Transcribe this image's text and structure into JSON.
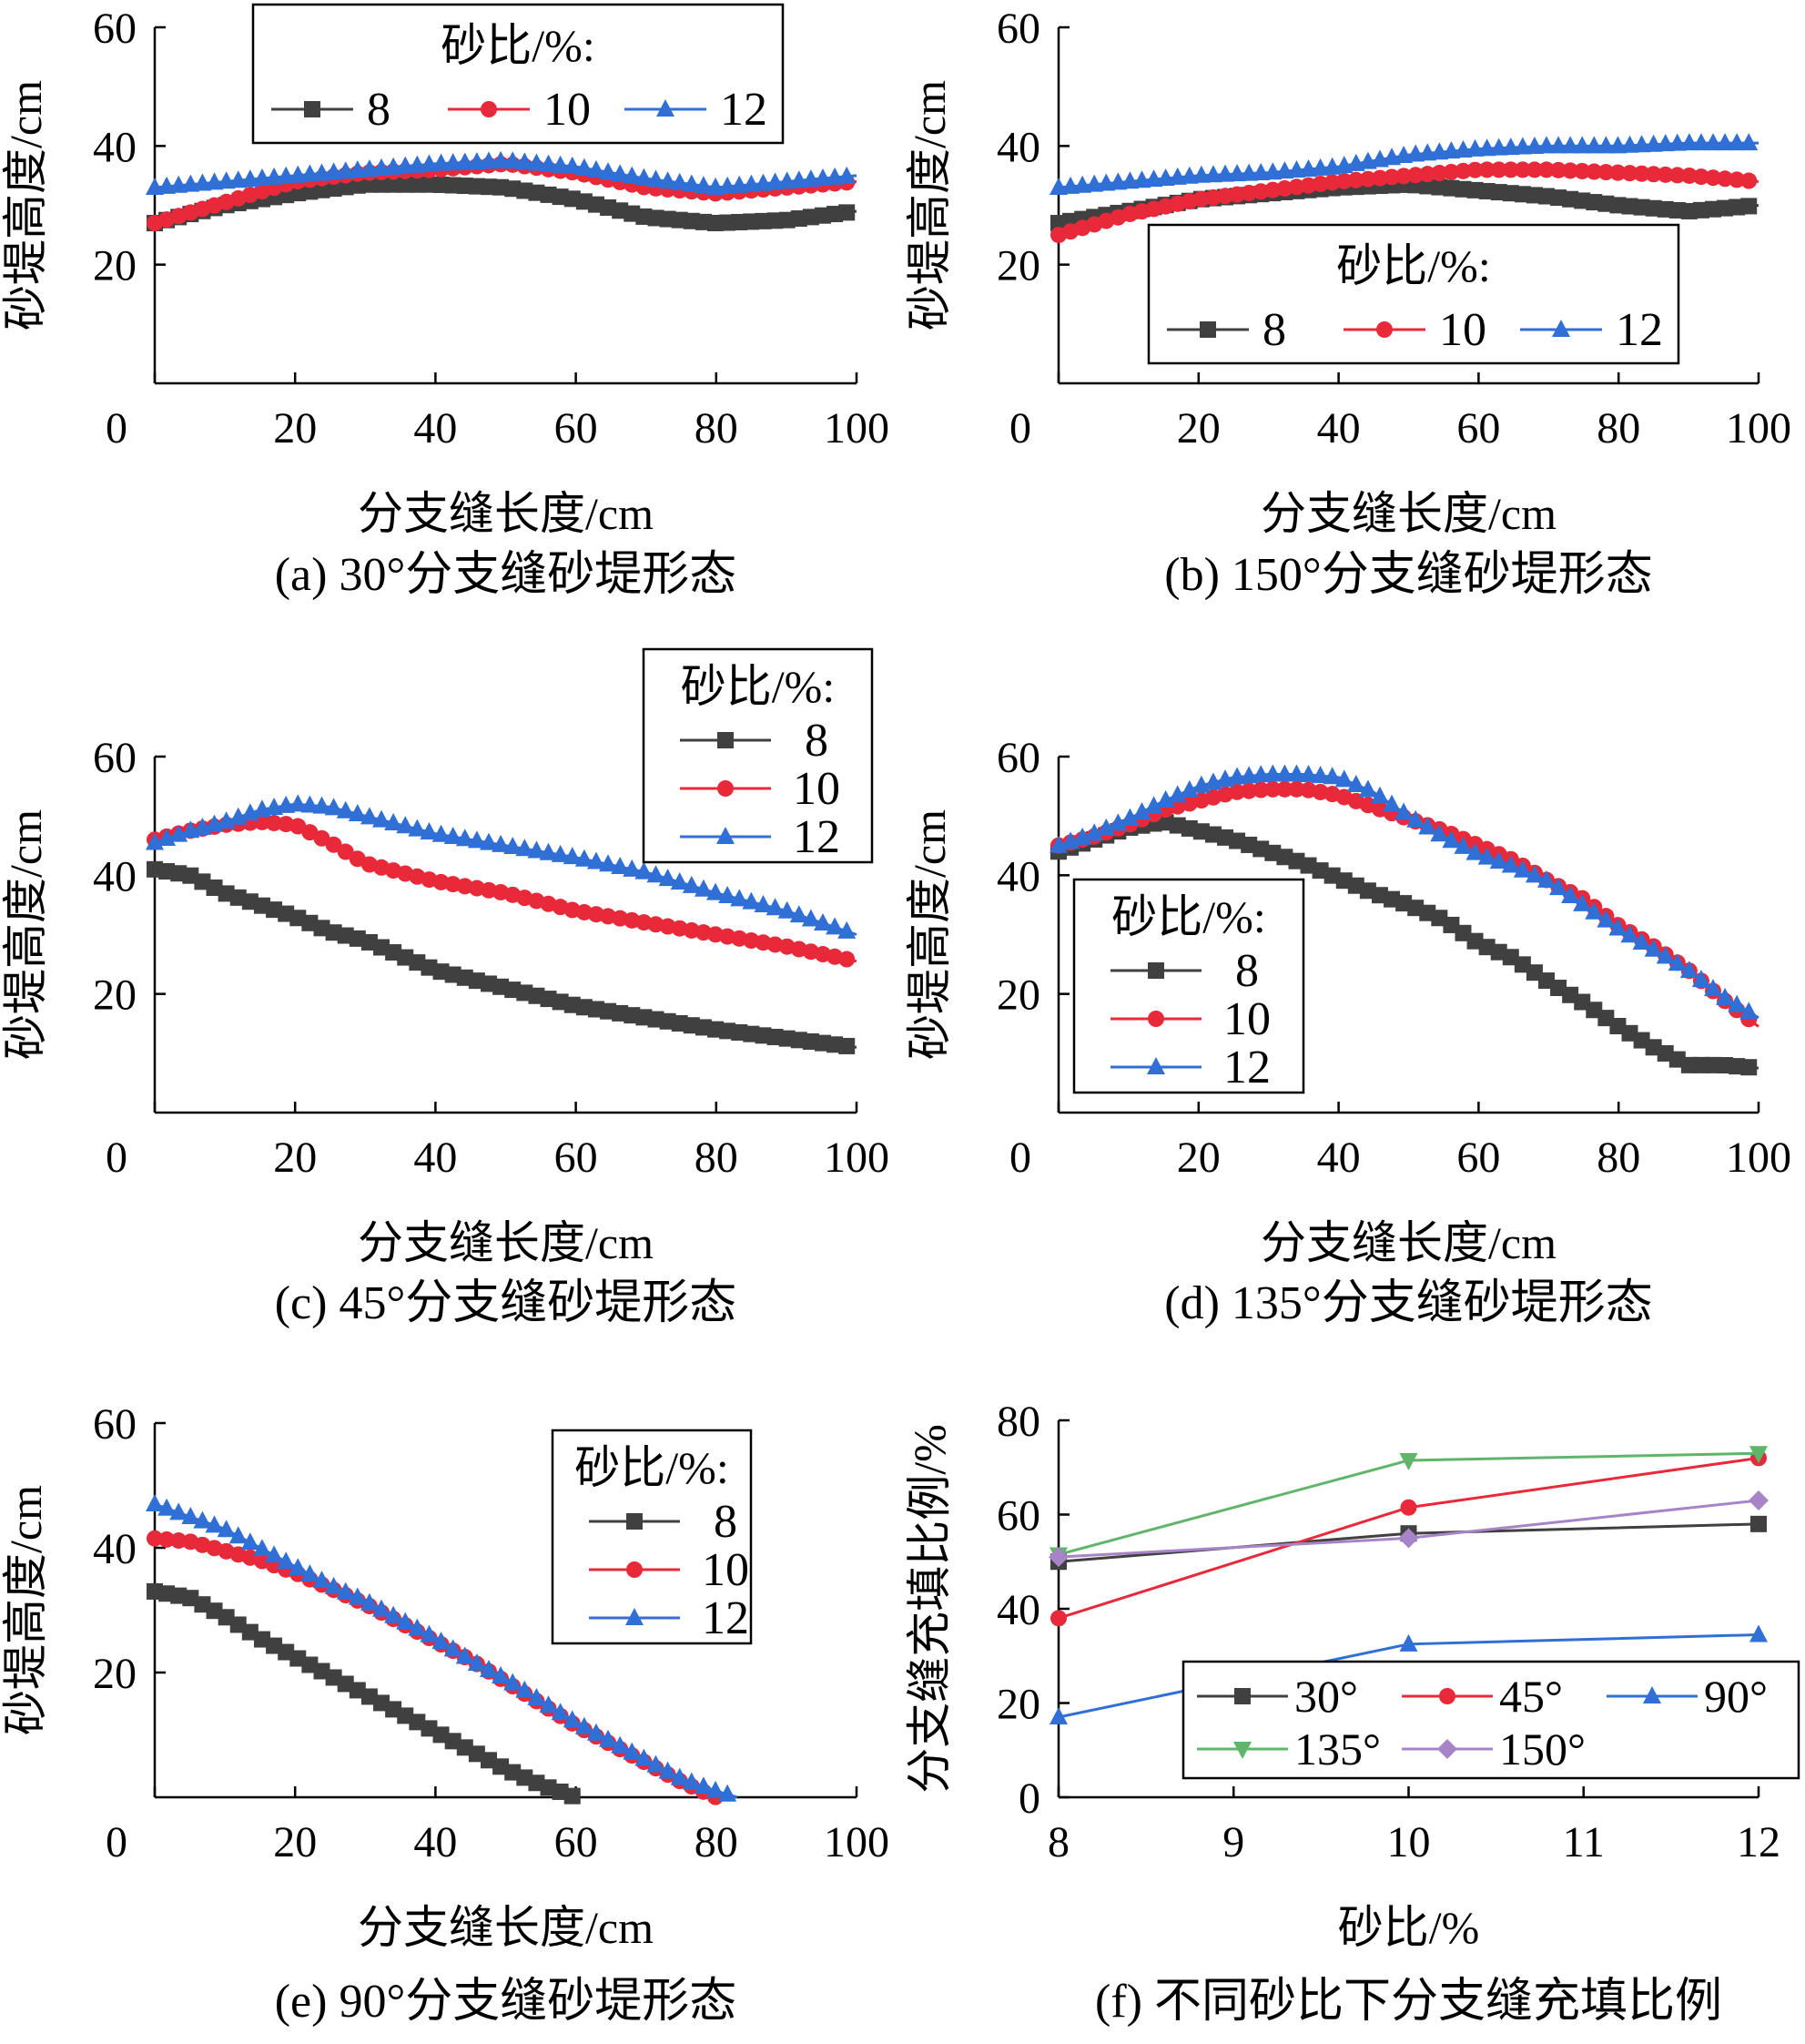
{
  "colors": {
    "s8": "#404040",
    "s10": "#e8293a",
    "s12": "#2f6fd6",
    "a30": "#404040",
    "a45": "#e8293a",
    "a90": "#2f6fd6",
    "a135": "#5fb56a",
    "a150": "#a784c8"
  },
  "chart_data": [
    {
      "id": "a",
      "type": "line",
      "caption": "(a) 30°分支缝砂堤形态",
      "xlabel": "分支缝长度/cm",
      "ylabel": "砂堤高度/cm",
      "xlim": [
        0,
        100
      ],
      "ylim": [
        0,
        60
      ],
      "xticks": [
        "0",
        "20",
        "40",
        "60",
        "80",
        "100"
      ],
      "yticks": [
        "20",
        "40",
        "60"
      ],
      "legend": {
        "title": "砂比/%:",
        "layout": "horizontal",
        "placement": "top-center"
      },
      "x": [
        0,
        10,
        20,
        30,
        40,
        50,
        60,
        70,
        80,
        90,
        100
      ],
      "series": [
        {
          "name": "8",
          "marker": "square",
          "color": "s8",
          "values": [
            27,
            30,
            32,
            33.5,
            33.5,
            33,
            31,
            28,
            27,
            27.5,
            29
          ]
        },
        {
          "name": "10",
          "marker": "circle",
          "color": "s10",
          "values": [
            27,
            30.5,
            34,
            35.5,
            36,
            37,
            35.5,
            33,
            32,
            33,
            34
          ]
        },
        {
          "name": "12",
          "marker": "triangle",
          "color": "s12",
          "values": [
            33,
            34,
            35,
            36,
            37,
            37.5,
            36.5,
            34.5,
            33,
            34,
            35
          ]
        }
      ]
    },
    {
      "id": "b",
      "type": "line",
      "caption": "(b) 150°分支缝砂堤形态",
      "xlabel": "分支缝长度/cm",
      "ylabel": "砂堤高度/cm",
      "xlim": [
        0,
        100
      ],
      "ylim": [
        0,
        60
      ],
      "xticks": [
        "0",
        "20",
        "40",
        "60",
        "80",
        "100"
      ],
      "yticks": [
        "20",
        "40",
        "60"
      ],
      "legend": {
        "title": "砂比/%:",
        "layout": "horizontal",
        "placement": "center"
      },
      "x": [
        0,
        10,
        20,
        30,
        40,
        50,
        60,
        70,
        80,
        90,
        100
      ],
      "series": [
        {
          "name": "8",
          "marker": "square",
          "color": "s8",
          "values": [
            27,
            29,
            31,
            32,
            33,
            33.5,
            32.5,
            31.5,
            30,
            29,
            30
          ]
        },
        {
          "name": "10",
          "marker": "circle",
          "color": "s10",
          "values": [
            25,
            28.5,
            31,
            32.5,
            34,
            35,
            36,
            36,
            35.5,
            35,
            34
          ]
        },
        {
          "name": "12",
          "marker": "triangle",
          "color": "s12",
          "values": [
            33,
            34,
            35,
            35.5,
            36.5,
            38.5,
            39.5,
            40,
            40,
            40.5,
            40.5
          ]
        }
      ]
    },
    {
      "id": "c",
      "type": "line",
      "caption": "(c) 45°分支缝砂堤形态",
      "xlabel": "分支缝长度/cm",
      "ylabel": "砂堤高度/cm",
      "xlim": [
        0,
        100
      ],
      "ylim": [
        0,
        60
      ],
      "xticks": [
        "0",
        "20",
        "40",
        "60",
        "80",
        "100"
      ],
      "yticks": [
        "20",
        "40",
        "60"
      ],
      "legend": {
        "title": "砂比/%:",
        "layout": "vertical",
        "placement": "top-right"
      },
      "x": [
        0,
        5,
        10,
        15,
        20,
        25,
        30,
        40,
        50,
        60,
        70,
        80,
        90,
        100
      ],
      "series": [
        {
          "name": "8",
          "marker": "square",
          "color": "s8",
          "values": [
            41,
            40,
            37,
            35,
            33,
            30.5,
            29,
            24,
            21,
            18,
            16,
            14,
            12.5,
            11
          ]
        },
        {
          "name": "10",
          "marker": "circle",
          "color": "s10",
          "values": [
            46,
            47.5,
            48.5,
            49,
            48.5,
            45.5,
            42,
            39,
            37,
            34,
            32,
            30,
            28,
            25.5
          ]
        },
        {
          "name": "12",
          "marker": "triangle",
          "color": "s12",
          "values": [
            45.5,
            47.5,
            49,
            51,
            52,
            51.5,
            50,
            47,
            45,
            43,
            40.5,
            37,
            34,
            30
          ]
        }
      ]
    },
    {
      "id": "d",
      "type": "line",
      "caption": "(d) 135°分支缝砂堤形态",
      "xlabel": "分支缝长度/cm",
      "ylabel": "砂堤高度/cm",
      "xlim": [
        0,
        100
      ],
      "ylim": [
        0,
        60
      ],
      "xticks": [
        "0",
        "20",
        "40",
        "60",
        "80",
        "100"
      ],
      "yticks": [
        "20",
        "40",
        "60"
      ],
      "legend": {
        "title": "砂比/%:",
        "layout": "vertical",
        "placement": "bottom-left"
      },
      "x": [
        0,
        5,
        10,
        15,
        20,
        25,
        30,
        35,
        40,
        45,
        50,
        55,
        60,
        65,
        70,
        75,
        80,
        85,
        90,
        95,
        100
      ],
      "series": [
        {
          "name": "8",
          "marker": "square",
          "color": "s8",
          "values": [
            44,
            46,
            48,
            49,
            47.5,
            46,
            44,
            42,
            39.5,
            37,
            35,
            32.5,
            28.5,
            26,
            22,
            18.5,
            14.5,
            11,
            8,
            8,
            7.5
          ]
        },
        {
          "name": "10",
          "marker": "circle",
          "color": "s10",
          "values": [
            45,
            46.5,
            48.5,
            51,
            52.5,
            54,
            54.5,
            54.5,
            53.5,
            51.5,
            49.5,
            47.5,
            45,
            42.5,
            39,
            36,
            31.5,
            28,
            24,
            19,
            14.5
          ]
        },
        {
          "name": "12",
          "marker": "triangle",
          "color": "s12",
          "values": [
            45,
            47,
            49.5,
            52.5,
            55,
            56.5,
            57,
            57,
            56.5,
            54,
            50,
            46.5,
            43.5,
            41.5,
            39,
            35,
            31,
            27.5,
            24,
            19.5,
            16
          ]
        }
      ]
    },
    {
      "id": "e",
      "type": "line",
      "caption": "(e) 90°分支缝砂堤形态",
      "xlabel": "分支缝长度/cm",
      "ylabel": "砂堤高度/cm",
      "xlim": [
        0,
        100
      ],
      "ylim": [
        0,
        60
      ],
      "xticks": [
        "0",
        "20",
        "40",
        "60",
        "80",
        "100"
      ],
      "yticks": [
        "20",
        "40",
        "60"
      ],
      "legend": {
        "title": "砂比/%:",
        "layout": "vertical",
        "placement": "top-right"
      },
      "x": [
        0,
        5,
        10,
        15,
        20,
        25,
        30,
        35,
        40,
        45,
        50,
        55,
        60,
        65,
        70,
        75,
        80,
        83
      ],
      "series": [
        {
          "name": "8",
          "marker": "square",
          "color": "s8",
          "values": [
            33,
            32,
            29,
            25.5,
            22.5,
            19.5,
            16.5,
            13.5,
            10.5,
            7.5,
            4.5,
            2,
            0,
            null,
            null,
            null,
            null,
            null
          ]
        },
        {
          "name": "10",
          "marker": "circle",
          "color": "s10",
          "values": [
            41.5,
            41,
            39.5,
            38,
            36,
            33.5,
            31,
            28,
            25,
            22,
            18.5,
            15,
            11.5,
            8.5,
            5.5,
            2.5,
            0,
            null
          ]
        },
        {
          "name": "12",
          "marker": "triangle",
          "color": "s12",
          "values": [
            47,
            45,
            43,
            40,
            37,
            34,
            31.5,
            28.5,
            25.5,
            22,
            19,
            15.5,
            12,
            9,
            6,
            3,
            1,
            0
          ]
        }
      ]
    },
    {
      "id": "f",
      "type": "line",
      "caption": "(f) 不同砂比下分支缝充填比例",
      "xlabel": "砂比/%",
      "ylabel": "分支缝充填比例/%",
      "xlim": [
        8,
        12
      ],
      "ylim": [
        0,
        80
      ],
      "xticks": [
        "8",
        "9",
        "10",
        "11",
        "12"
      ],
      "yticks": [
        "0",
        "20",
        "40",
        "60",
        "80"
      ],
      "legend": {
        "title": "",
        "layout": "grid",
        "placement": "bottom-right"
      },
      "x": [
        8,
        10,
        12
      ],
      "series": [
        {
          "name": "30°",
          "marker": "square",
          "color": "a30",
          "values": [
            50,
            56,
            58
          ]
        },
        {
          "name": "45°",
          "marker": "circle",
          "color": "a45",
          "values": [
            38,
            61.5,
            72
          ]
        },
        {
          "name": "90°",
          "marker": "triangle",
          "color": "a90",
          "values": [
            17,
            32.5,
            34.5
          ]
        },
        {
          "name": "135°",
          "marker": "triangle-down",
          "color": "a135",
          "values": [
            51.5,
            71.5,
            73
          ]
        },
        {
          "name": "150°",
          "marker": "diamond",
          "color": "a150",
          "values": [
            51,
            55,
            63
          ]
        }
      ]
    }
  ]
}
